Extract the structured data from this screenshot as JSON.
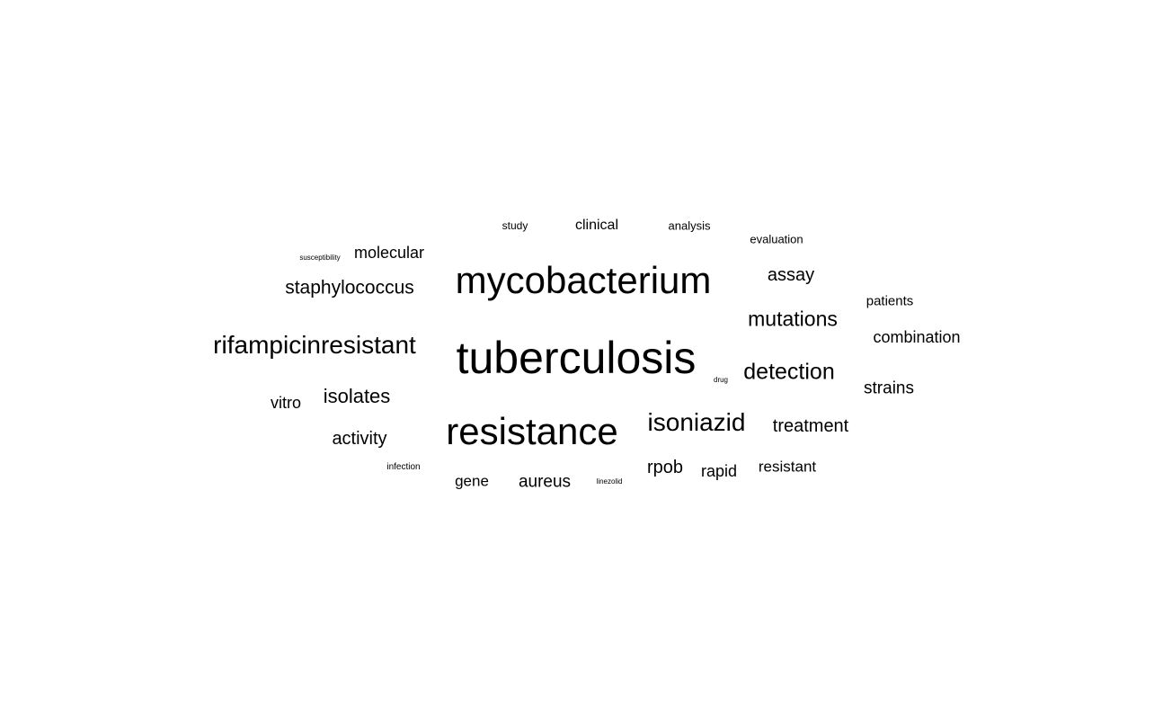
{
  "word_cloud": {
    "text_color": "#000000",
    "background_color": "#ffffff",
    "words": {
      "tuberculosis": "tuberculosis",
      "mycobacterium": "mycobacterium",
      "resistance": "resistance",
      "rifampicinresistant": "rifampicinresistant",
      "isoniazid": "isoniazid",
      "detection": "detection",
      "mutations": "mutations",
      "isolates": "isolates",
      "staphylococcus": "staphylococcus",
      "treatment": "treatment",
      "assay": "assay",
      "activity": "activity",
      "rpob": "rpob",
      "strains": "strains",
      "aureus": "aureus",
      "combination": "combination",
      "vitro": "vitro",
      "molecular": "molecular",
      "rapid": "rapid",
      "gene": "gene",
      "resistant": "resistant",
      "clinical": "clinical",
      "patients": "patients",
      "evaluation": "evaluation",
      "analysis": "analysis",
      "study": "study",
      "infection": "infection",
      "drug": "drug",
      "linezolid": "linezolid",
      "susceptibility": "susceptibility"
    }
  }
}
